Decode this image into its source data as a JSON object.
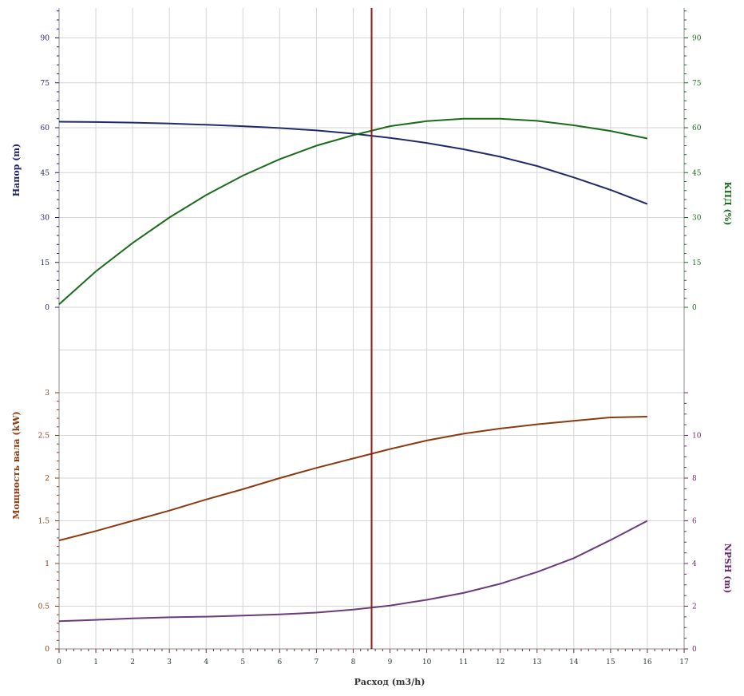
{
  "chart_data": {
    "type": "line",
    "xlabel": "Расход (m3/h)",
    "x_ticks": [
      0,
      1,
      2,
      3,
      4,
      5,
      6,
      7,
      8,
      9,
      10,
      11,
      12,
      13,
      14,
      15,
      16,
      17
    ],
    "xlim": [
      0,
      17
    ],
    "grid": true,
    "operating_point": {
      "x": 8.5,
      "color": "#8b1a1a"
    },
    "top_panel": {
      "left_axis": {
        "label": "Напор (m)",
        "color": "#1f1f6b",
        "ylim": [
          0,
          100
        ],
        "ticks": [
          0,
          15,
          30,
          45,
          60,
          75,
          90
        ]
      },
      "right_axis": {
        "label": "КПД (%)",
        "color": "#1a6b1a",
        "ylim": [
          0,
          100
        ],
        "ticks": [
          0,
          15,
          30,
          45,
          60,
          75,
          90
        ]
      },
      "series": [
        {
          "axis": "left",
          "color": "#1f2a6b",
          "x": [
            0,
            1,
            2,
            3,
            4,
            5,
            6,
            7,
            8,
            9,
            10,
            11,
            12,
            13,
            14,
            15,
            16
          ],
          "y": [
            62,
            61.9,
            61.7,
            61.4,
            61,
            60.5,
            59.9,
            59.1,
            58,
            56.6,
            54.9,
            52.8,
            50.3,
            47.2,
            43.4,
            39.2,
            34.5
          ]
        },
        {
          "axis": "right",
          "color": "#1a6b1a",
          "x": [
            0,
            1,
            2,
            3,
            4,
            5,
            6,
            7,
            8,
            9,
            10,
            11,
            12,
            13,
            14,
            15,
            16
          ],
          "y": [
            1,
            12,
            21.5,
            30,
            37.5,
            44,
            49.5,
            54,
            57.5,
            60.5,
            62.2,
            63,
            63,
            62.3,
            60.8,
            58.9,
            56.4
          ]
        }
      ]
    },
    "bottom_panel": {
      "left_axis": {
        "label": "Мощность вала (kW)",
        "color": "#8b3a0f",
        "ylim": [
          0,
          3
        ],
        "ticks": [
          "0",
          "0.5",
          "1",
          "1.5",
          "2",
          "2.5",
          "3"
        ]
      },
      "right_axis": {
        "label": "NPSH (m)",
        "color": "#6b2a6b",
        "ylim": [
          0,
          12
        ],
        "ticks": [
          "2",
          "4",
          "6",
          "8",
          "10"
        ]
      },
      "series": [
        {
          "axis": "left",
          "color": "#8b3a0f",
          "x": [
            0,
            1,
            2,
            3,
            4,
            5,
            6,
            7,
            8,
            9,
            10,
            11,
            12,
            13,
            14,
            15,
            16
          ],
          "y": [
            1.27,
            1.38,
            1.5,
            1.62,
            1.75,
            1.87,
            2,
            2.12,
            2.23,
            2.34,
            2.44,
            2.52,
            2.58,
            2.63,
            2.67,
            2.71,
            2.72
          ]
        },
        {
          "axis": "right",
          "color": "#6b3a7b",
          "x": [
            0,
            1,
            2,
            3,
            4,
            5,
            6,
            7,
            8,
            9,
            10,
            11,
            12,
            13,
            14,
            15,
            16
          ],
          "y": [
            1.3,
            1.36,
            1.43,
            1.48,
            1.51,
            1.56,
            1.62,
            1.7,
            1.84,
            2.03,
            2.3,
            2.62,
            3.05,
            3.6,
            4.25,
            5.1,
            6.0
          ]
        }
      ]
    }
  }
}
